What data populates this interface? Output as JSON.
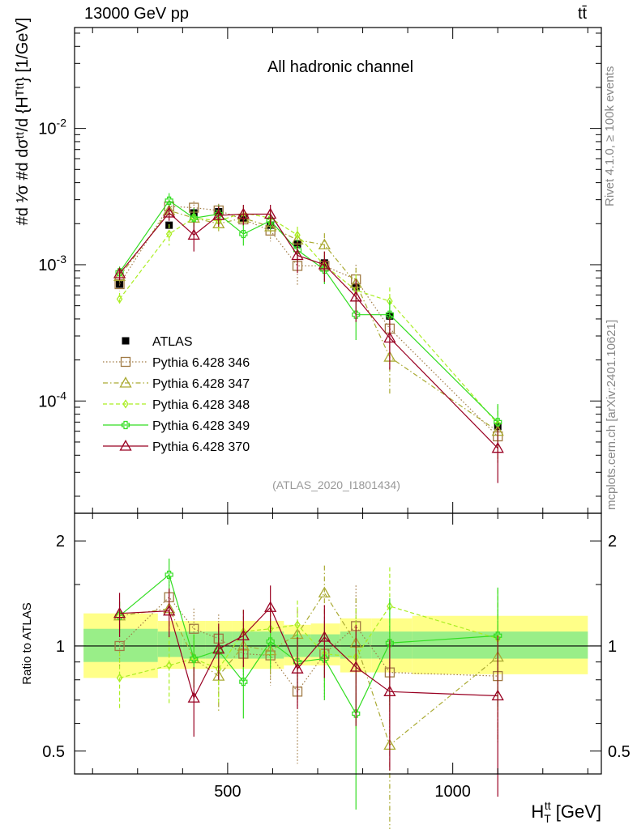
{
  "header": {
    "energy_label": "13000 GeV pp",
    "process_label": "tt̄"
  },
  "side_labels": {
    "rivet": "Rivet 4.1.0, ≥ 100k events",
    "mcplots": "mcplots.cern.ch [arXiv:2401.10621]"
  },
  "chart_data": [
    {
      "type": "scatter",
      "panel": "main",
      "title": "All hadronic channel",
      "ylabel": "#d\\frac{1}{σ}#d\\frac{dσ^{tt}}{d {H_T^{tt}}} [1/GeV]",
      "xlabel": "H_T^{tt} [GeV]",
      "ylog": true,
      "xlim": [
        160,
        1330
      ],
      "ylim": [
        1.5e-05,
        0.055
      ],
      "y_tick_labels": [
        {
          "value": 0.0001,
          "label": "10^{-4}"
        },
        {
          "value": 0.001,
          "label": "10^{-3}"
        },
        {
          "value": 0.01,
          "label": "10^{-2}"
        }
      ],
      "watermark": "(ATLAS_2020_I1801434)",
      "legend_position": "center-left",
      "x": [
        260,
        370,
        425,
        480,
        535,
        595,
        655,
        715,
        785,
        860,
        1100
      ],
      "series": [
        {
          "name": "ATLAS",
          "color": "#000000",
          "marker": "square-filled",
          "line": "none",
          "values": [
            0.00072,
            0.00195,
            0.0024,
            0.00245,
            0.0022,
            0.00195,
            0.00142,
            0.00103,
            0.00069,
            0.00042,
            6.5e-05
          ],
          "errors": [
            4e-05,
            8e-05,
            0.0001,
            0.0001,
            0.0001,
            9e-05,
            8e-05,
            6e-05,
            5e-05,
            3e-05,
            6e-06
          ]
        },
        {
          "name": "Pythia 6.428 346",
          "color": "#a07a44",
          "marker": "square-open",
          "line": "dotted",
          "values": [
            0.00072,
            0.00268,
            0.00262,
            0.0025,
            0.00215,
            0.00178,
            0.00098,
            0.00098,
            0.00078,
            0.00034,
            5.5e-05
          ],
          "errors": [
            8e-05,
            0.0002,
            0.0003,
            0.0003,
            0.0003,
            0.0003,
            0.00028,
            0.00025,
            0.00022,
            0.00012,
            2e-05
          ]
        },
        {
          "name": "Pythia 6.428 347",
          "color": "#aaaa33",
          "marker": "triangle-open",
          "line": "dashdot",
          "values": [
            0.00082,
            0.0025,
            0.0022,
            0.002,
            0.0022,
            0.0019,
            0.00152,
            0.0014,
            0.00073,
            0.00021,
            6e-05
          ],
          "errors": [
            8e-05,
            0.0003,
            0.0003,
            0.0003,
            0.0003,
            0.0003,
            0.00025,
            0.0003,
            0.00022,
            0.0001,
            2.5e-05
          ]
        },
        {
          "name": "Pythia 6.428 348",
          "color": "#aaee22",
          "marker": "diamond-open",
          "line": "dashed",
          "values": [
            0.00056,
            0.00168,
            0.0022,
            0.0021,
            0.0024,
            0.0022,
            0.00165,
            0.00099,
            0.00065,
            0.00054,
            6.8e-05
          ],
          "errors": [
            6e-05,
            0.0003,
            0.0003,
            0.0003,
            0.0003,
            0.0003,
            0.00025,
            0.00022,
            0.0002,
            0.00014,
            2.5e-05
          ]
        },
        {
          "name": "Pythia 6.428 349",
          "color": "#33dd22",
          "marker": "cross-open",
          "line": "solid",
          "values": [
            0.00088,
            0.00295,
            0.0022,
            0.00235,
            0.00168,
            0.0021,
            0.00128,
            0.00092,
            0.00043,
            0.00043,
            7e-05
          ],
          "errors": [
            9e-05,
            0.0004,
            0.0004,
            0.0004,
            0.0003,
            0.0003,
            0.00025,
            0.0002,
            0.00015,
            0.00012,
            2.5e-05
          ]
        },
        {
          "name": "Pythia 6.428 370",
          "color": "#990022",
          "marker": "triangle-open",
          "line": "solid",
          "values": [
            0.00086,
            0.0024,
            0.00165,
            0.0023,
            0.00235,
            0.00235,
            0.00117,
            0.001,
            0.00058,
            0.00029,
            4.5e-05
          ],
          "errors": [
            9e-05,
            0.0003,
            0.0004,
            0.0004,
            0.0004,
            0.0004,
            0.0003,
            0.00025,
            0.0002,
            0.00012,
            2e-05
          ]
        }
      ]
    },
    {
      "type": "scatter",
      "panel": "ratio",
      "ylabel": "Ratio to ATLAS",
      "xlabel": "H_T^{tt} [GeV]",
      "ylog": true,
      "xlim": [
        160,
        1330
      ],
      "ylim": [
        0.43,
        2.4
      ],
      "y_tick_labels": [
        {
          "value": 0.5,
          "label": "0.5"
        },
        {
          "value": 1,
          "label": "1"
        },
        {
          "value": 2,
          "label": "2"
        }
      ],
      "x_tick_labels": [
        {
          "value": 500,
          "label": "500"
        },
        {
          "value": 1000,
          "label": "1000"
        }
      ],
      "bin_edges": [
        180,
        345,
        400,
        450,
        510,
        565,
        625,
        685,
        750,
        820,
        910,
        1300
      ],
      "band_inner": [
        [
          0.9,
          1.12
        ],
        [
          0.93,
          1.1
        ],
        [
          0.92,
          1.1
        ],
        [
          0.92,
          1.1
        ],
        [
          0.92,
          1.1
        ],
        [
          0.92,
          1.1
        ],
        [
          0.93,
          1.08
        ],
        [
          0.93,
          1.08
        ],
        [
          0.92,
          1.1
        ],
        [
          0.92,
          1.1
        ],
        [
          0.92,
          1.1
        ]
      ],
      "band_outer": [
        [
          0.81,
          1.24
        ],
        [
          0.86,
          1.18
        ],
        [
          0.86,
          1.18
        ],
        [
          0.86,
          1.18
        ],
        [
          0.86,
          1.18
        ],
        [
          0.86,
          1.18
        ],
        [
          0.88,
          1.15
        ],
        [
          0.88,
          1.16
        ],
        [
          0.84,
          1.2
        ],
        [
          0.84,
          1.2
        ],
        [
          0.83,
          1.22
        ]
      ],
      "x": [
        260,
        370,
        425,
        480,
        535,
        595,
        655,
        715,
        785,
        860,
        1100
      ],
      "series": [
        {
          "name": "Pythia 6.428 346",
          "color": "#a07a44",
          "marker": "square-open",
          "line": "dotted",
          "values": [
            1.0,
            1.38,
            1.12,
            1.05,
            0.95,
            0.94,
            0.74,
            0.95,
            1.14,
            0.84,
            0.82
          ],
          "errors": [
            0.12,
            0.15,
            0.16,
            0.18,
            0.17,
            0.17,
            0.28,
            0.25,
            0.35,
            0.3,
            0.28
          ]
        },
        {
          "name": "Pythia 6.428 347",
          "color": "#aaaa33",
          "marker": "triangle-open",
          "line": "dashdot",
          "values": [
            1.22,
            1.28,
            0.92,
            0.82,
            1.0,
            0.97,
            1.08,
            1.42,
            1.02,
            0.52,
            0.93
          ],
          "errors": [
            0.12,
            0.18,
            0.16,
            0.17,
            0.17,
            0.17,
            0.2,
            0.28,
            0.35,
            0.25,
            0.4
          ]
        },
        {
          "name": "Pythia 6.428 348",
          "color": "#aaee22",
          "marker": "diamond-open",
          "line": "dashed",
          "values": [
            0.81,
            0.88,
            0.92,
            0.86,
            1.1,
            1.12,
            1.15,
            0.95,
            0.93,
            1.3,
            1.05
          ],
          "errors": [
            0.15,
            0.2,
            0.16,
            0.17,
            0.17,
            0.18,
            0.2,
            0.2,
            0.35,
            0.38,
            0.4
          ]
        },
        {
          "name": "Pythia 6.428 349",
          "color": "#33dd22",
          "marker": "cross-open",
          "line": "solid",
          "values": [
            1.22,
            1.6,
            0.92,
            0.97,
            0.79,
            1.03,
            0.9,
            0.92,
            0.64,
            1.02,
            1.07
          ],
          "errors": [
            0.12,
            0.18,
            0.16,
            0.17,
            0.17,
            0.17,
            0.2,
            0.22,
            0.3,
            0.35,
            0.4
          ]
        },
        {
          "name": "Pythia 6.428 370",
          "color": "#990022",
          "marker": "triangle-open",
          "line": "solid",
          "values": [
            1.24,
            1.26,
            0.71,
            0.98,
            1.07,
            1.29,
            0.86,
            1.06,
            0.87,
            0.74,
            0.72
          ],
          "errors": [
            0.18,
            0.2,
            0.16,
            0.18,
            0.2,
            0.2,
            0.2,
            0.25,
            0.28,
            0.3,
            0.35
          ]
        }
      ]
    }
  ]
}
